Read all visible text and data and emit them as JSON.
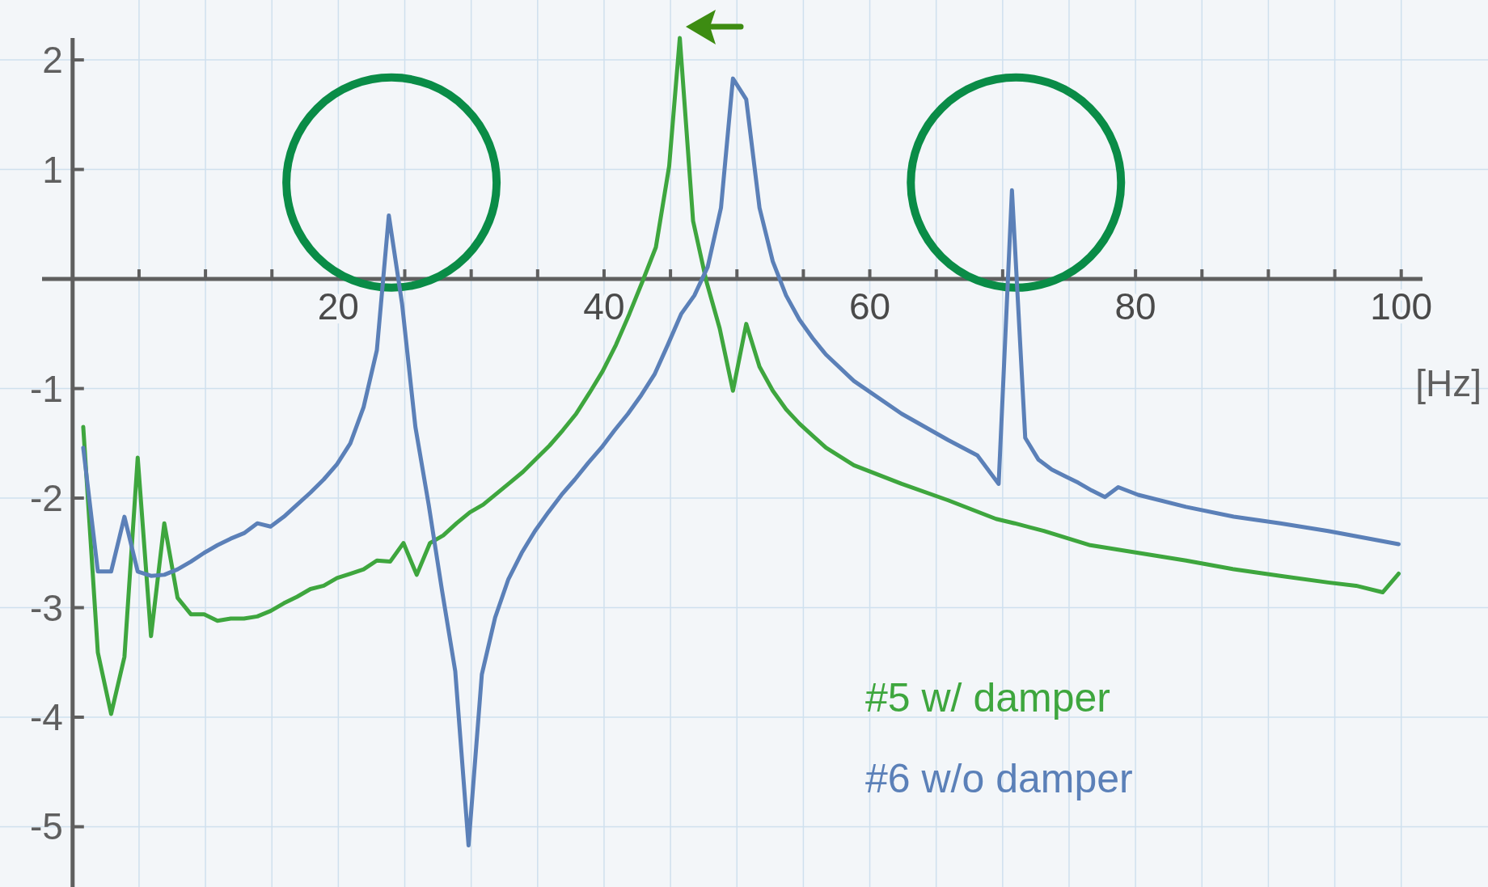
{
  "chart_data": {
    "type": "line",
    "xlabel": "[Hz]",
    "xlim": [
      -2.3,
      101.6
    ],
    "ylim": [
      -5.55,
      2.2
    ],
    "xticks": [
      {
        "value": 5,
        "label": null
      },
      {
        "value": 10,
        "label": null
      },
      {
        "value": 15,
        "label": null
      },
      20,
      {
        "value": 25,
        "label": null
      },
      {
        "value": 30,
        "label": null
      },
      {
        "value": 35,
        "label": null
      },
      40,
      {
        "value": 45,
        "label": null
      },
      {
        "value": 50,
        "label": null
      },
      {
        "value": 55,
        "label": null
      },
      60,
      {
        "value": 65,
        "label": null
      },
      {
        "value": 70,
        "label": null
      },
      {
        "value": 75,
        "label": null
      },
      80,
      {
        "value": 85,
        "label": null
      },
      {
        "value": 90,
        "label": null
      },
      {
        "value": 95,
        "label": null
      },
      100
    ],
    "yticks": [
      -5,
      -4,
      -3,
      -2,
      -1,
      1,
      2
    ],
    "grid": true,
    "legend": "bottom right",
    "line_style": "solid",
    "marker": "none",
    "series": [
      {
        "name": "#5 w/ damper",
        "color": "#3ea63e",
        "x": [
          0.8,
          1.9,
          2.9,
          3.9,
          4.9,
          5.9,
          6.9,
          7.9,
          8.9,
          9.9,
          10.9,
          11.9,
          12.9,
          13.9,
          14.9,
          15.9,
          16.9,
          17.9,
          18.9,
          19.9,
          20.9,
          21.9,
          22.9,
          23.9,
          24.9,
          25.9,
          26.9,
          27.9,
          28.9,
          29.9,
          30.9,
          31.9,
          32.9,
          33.9,
          34.9,
          35.9,
          36.9,
          37.9,
          38.9,
          39.9,
          40.9,
          41.9,
          42.9,
          43.9,
          44.9,
          45.7,
          46.7,
          47.7,
          48.7,
          49.7,
          50.7,
          51.7,
          52.7,
          53.7,
          54.7,
          55.7,
          56.7,
          58.8,
          62.4,
          65.9,
          69.5,
          70.9,
          73.1,
          76.6,
          80.2,
          83.8,
          87.4,
          90.9,
          94.5,
          96.6,
          98.6,
          99.8
        ],
        "values": [
          -1.35,
          -3.41,
          -3.97,
          -3.45,
          -1.63,
          -3.26,
          -2.23,
          -2.91,
          -3.06,
          -3.06,
          -3.12,
          -3.1,
          -3.1,
          -3.08,
          -3.03,
          -2.96,
          -2.9,
          -2.83,
          -2.8,
          -2.73,
          -2.69,
          -2.65,
          -2.57,
          -2.58,
          -2.41,
          -2.7,
          -2.41,
          -2.34,
          -2.23,
          -2.13,
          -2.06,
          -1.96,
          -1.86,
          -1.76,
          -1.64,
          -1.52,
          -1.38,
          -1.23,
          -1.04,
          -0.84,
          -0.6,
          -0.32,
          -0.02,
          0.29,
          1.03,
          2.2,
          0.53,
          -0.02,
          -0.45,
          -1.02,
          -0.41,
          -0.8,
          -1.02,
          -1.19,
          -1.32,
          -1.43,
          -1.54,
          -1.7,
          -1.87,
          -2.02,
          -2.19,
          -2.23,
          -2.3,
          -2.43,
          -2.5,
          -2.57,
          -2.65,
          -2.71,
          -2.77,
          -2.8,
          -2.86,
          -2.69
        ]
      },
      {
        "name": "#6 w/o damper",
        "color": "#5b80b8",
        "x": [
          0.8,
          1.9,
          2.9,
          3.9,
          4.9,
          5.9,
          6.9,
          7.9,
          8.9,
          9.9,
          10.9,
          11.9,
          12.9,
          13.9,
          14.9,
          15.9,
          16.9,
          17.9,
          18.9,
          19.9,
          20.9,
          21.9,
          22.9,
          23.8,
          24.8,
          25.8,
          26.8,
          27.8,
          28.8,
          29.8,
          30.8,
          31.8,
          32.8,
          33.8,
          34.8,
          35.8,
          36.8,
          37.8,
          38.8,
          39.8,
          40.8,
          41.8,
          42.8,
          43.8,
          44.8,
          45.8,
          46.8,
          47.8,
          48.8,
          49.7,
          50.7,
          51.7,
          52.7,
          53.7,
          54.7,
          55.7,
          56.7,
          58.8,
          62.4,
          65.9,
          68.1,
          69.7,
          70.7,
          71.7,
          72.7,
          73.7,
          74.7,
          75.7,
          76.7,
          77.7,
          78.7,
          80.2,
          83.8,
          87.4,
          90.9,
          94.5,
          99.8
        ],
        "values": [
          -1.54,
          -2.67,
          -2.67,
          -2.17,
          -2.67,
          -2.71,
          -2.7,
          -2.65,
          -2.58,
          -2.5,
          -2.43,
          -2.37,
          -2.32,
          -2.23,
          -2.26,
          -2.17,
          -2.06,
          -1.95,
          -1.83,
          -1.69,
          -1.5,
          -1.17,
          -0.65,
          0.58,
          -0.23,
          -1.35,
          -2.06,
          -2.84,
          -3.58,
          -5.17,
          -3.61,
          -3.09,
          -2.74,
          -2.5,
          -2.3,
          -2.13,
          -1.97,
          -1.83,
          -1.68,
          -1.54,
          -1.38,
          -1.23,
          -1.06,
          -0.87,
          -0.6,
          -0.32,
          -0.15,
          0.11,
          0.65,
          1.83,
          1.64,
          0.65,
          0.16,
          -0.15,
          -0.37,
          -0.54,
          -0.69,
          -0.93,
          -1.23,
          -1.47,
          -1.61,
          -1.87,
          0.81,
          -1.45,
          -1.65,
          -1.74,
          -1.8,
          -1.86,
          -1.93,
          -1.99,
          -1.9,
          -1.97,
          -2.08,
          -2.17,
          -2.23,
          -2.3,
          -2.42
        ]
      }
    ]
  }
}
